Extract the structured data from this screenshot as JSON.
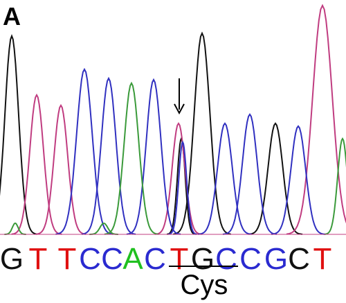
{
  "panel_label": "A",
  "bases": [
    {
      "letter": "G",
      "color": "#111111"
    },
    {
      "letter": "T",
      "color": "#e01010"
    },
    {
      "letter": "T",
      "color": "#e01010"
    },
    {
      "letter": "C",
      "color": "#2a2ad0"
    },
    {
      "letter": "C",
      "color": "#2a2ad0"
    },
    {
      "letter": "A",
      "color": "#20c020"
    },
    {
      "letter": "C",
      "color": "#2a2ad0"
    },
    {
      "letter": "T",
      "color": "#e01010"
    },
    {
      "letter": "G",
      "color": "#111111"
    },
    {
      "letter": "C",
      "color": "#2a2ad0"
    },
    {
      "letter": "C",
      "color": "#2a2ad0"
    },
    {
      "letter": "G",
      "color": "#2a2ad0"
    },
    {
      "letter": "C",
      "color": "#111111"
    },
    {
      "letter": "T",
      "color": "#e01010"
    }
  ],
  "codon_label": "Cys"
}
